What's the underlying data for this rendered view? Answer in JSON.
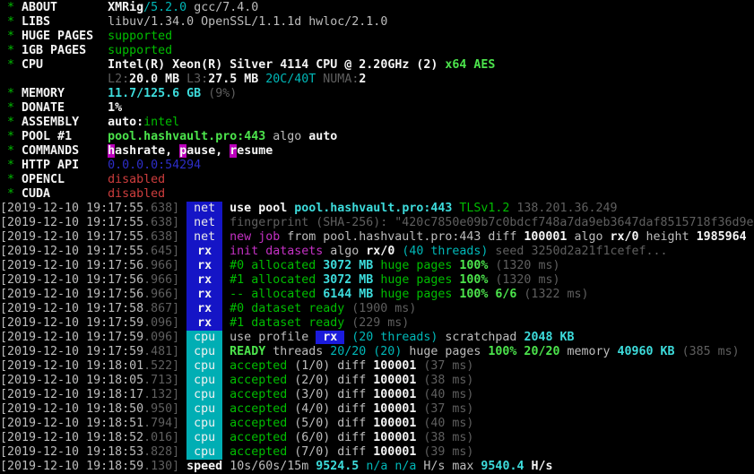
{
  "terminal": {
    "colors": {
      "background": "#000000",
      "default_text": "#bdbdbd",
      "white_bold": "#f5f5f5",
      "dim": "#5f5f5f",
      "green": "#00bd00",
      "green_bright": "#4ce44c",
      "cyan": "#00b8b8",
      "cyan_bright": "#3ddcdc",
      "magenta": "#c431c4",
      "red": "#cd3d3d",
      "blue": "#2d2dc8",
      "net_badge_bg": "#1515c6",
      "cpu_badge_bg": "#00aeb4",
      "hotkey_bg": "#bb00bb"
    },
    "lines": [
      [
        [
          "g",
          " * "
        ],
        [
          "lbl",
          "ABOUT       "
        ],
        [
          "w",
          "XMRig"
        ],
        [
          "c",
          "/5.2.0"
        ],
        [
          "d",
          " gcc/7.4.0"
        ]
      ],
      [
        [
          "g",
          " * "
        ],
        [
          "lbl",
          "LIBS        "
        ],
        [
          "d",
          "libuv/1.34.0 OpenSSL/1.1.1d hwloc/2.1.0"
        ]
      ],
      [
        [
          "g",
          " * "
        ],
        [
          "lbl",
          "HUGE PAGES  "
        ],
        [
          "g",
          "supported"
        ]
      ],
      [
        [
          "g",
          " * "
        ],
        [
          "lbl",
          "1GB PAGES   "
        ],
        [
          "g",
          "supported"
        ]
      ],
      [
        [
          "g",
          " * "
        ],
        [
          "lbl",
          "CPU         "
        ],
        [
          "w",
          "Intel(R) Xeon(R) Silver 4114 CPU @ 2.20GHz (2) "
        ],
        [
          "gb",
          "x64 AES"
        ]
      ],
      [
        [
          "d",
          "               "
        ],
        [
          "dk",
          "L2:"
        ],
        [
          "w",
          "20.0 MB "
        ],
        [
          "dk",
          "L3:"
        ],
        [
          "w",
          "27.5 MB "
        ],
        [
          "c",
          "20C/40T "
        ],
        [
          "dk",
          "NUMA:"
        ],
        [
          "w",
          "2"
        ]
      ],
      [
        [
          "g",
          " * "
        ],
        [
          "lbl",
          "MEMORY      "
        ],
        [
          "cb",
          "11.7/125.6 GB "
        ],
        [
          "dk",
          "(9%)"
        ]
      ],
      [
        [
          "g",
          " * "
        ],
        [
          "lbl",
          "DONATE      "
        ],
        [
          "w",
          "1%"
        ]
      ],
      [
        [
          "g",
          " * "
        ],
        [
          "lbl",
          "ASSEMBLY    "
        ],
        [
          "w",
          "auto:"
        ],
        [
          "g",
          "intel"
        ]
      ],
      [
        [
          "g",
          " * "
        ],
        [
          "lbl",
          "POOL #1     "
        ],
        [
          "gb",
          "pool.hashvault.pro:443"
        ],
        [
          "d",
          " algo "
        ],
        [
          "w",
          "auto"
        ]
      ],
      [
        [
          "g",
          " * "
        ],
        [
          "lbl",
          "COMMANDS    "
        ],
        [
          "hl",
          "h"
        ],
        [
          "w",
          "ashrate, "
        ],
        [
          "hl",
          "p"
        ],
        [
          "w",
          "ause, "
        ],
        [
          "hl",
          "r"
        ],
        [
          "w",
          "esume"
        ]
      ],
      [
        [
          "g",
          " * "
        ],
        [
          "lbl",
          "HTTP API    "
        ],
        [
          "b",
          "0.0.0.0:54294"
        ]
      ],
      [
        [
          "g",
          " * "
        ],
        [
          "lbl",
          "OPENCL      "
        ],
        [
          "r",
          "disabled"
        ]
      ],
      [
        [
          "g",
          " * "
        ],
        [
          "lbl",
          "CUDA        "
        ],
        [
          "r",
          "disabled"
        ]
      ],
      [
        [
          "ts",
          "[2019-12-10 19:17:55"
        ],
        [
          "tsd",
          ".638] "
        ],
        [
          "bn",
          "net"
        ],
        [
          "d",
          " "
        ],
        [
          "w",
          "use pool "
        ],
        [
          "cb",
          "pool.hashvault.pro:443 "
        ],
        [
          "g",
          "TLSv1.2"
        ],
        [
          "dk",
          " 138.201.36.249"
        ]
      ],
      [
        [
          "ts",
          "[2019-12-10 19:17:55"
        ],
        [
          "tsd",
          ".638] "
        ],
        [
          "bn",
          "net"
        ],
        [
          "d",
          " "
        ],
        [
          "dk",
          "fingerprint (SHA-256): \"420c7850e09b7c0bdcf748a7da9eb3647daf8515718f36d9e"
        ]
      ],
      [
        [
          "ts",
          "[2019-12-10 19:17:55"
        ],
        [
          "tsd",
          ".638] "
        ],
        [
          "bn",
          "net"
        ],
        [
          "d",
          " "
        ],
        [
          "m",
          "new job"
        ],
        [
          "d",
          " from pool.hashvault.pro:443 diff "
        ],
        [
          "w",
          "100001"
        ],
        [
          "d",
          " algo "
        ],
        [
          "w",
          "rx/0"
        ],
        [
          "d",
          " height "
        ],
        [
          "w",
          "1985964"
        ]
      ],
      [
        [
          "ts",
          "[2019-12-10 19:17:55"
        ],
        [
          "tsd",
          ".645] "
        ],
        [
          "brx",
          "rx"
        ],
        [
          "d",
          " "
        ],
        [
          "m",
          "init datasets"
        ],
        [
          "d",
          " algo "
        ],
        [
          "w",
          "rx/0"
        ],
        [
          "c",
          " (40 threads)"
        ],
        [
          "dk",
          " seed 3250d2a21f1cefef..."
        ]
      ],
      [
        [
          "ts",
          "[2019-12-10 19:17:56"
        ],
        [
          "tsd",
          ".966] "
        ],
        [
          "brx",
          "rx"
        ],
        [
          "d",
          " "
        ],
        [
          "g",
          "#0 allocated"
        ],
        [
          "cb",
          " 3072 MB "
        ],
        [
          "g",
          "huge pages "
        ],
        [
          "gb",
          "100%"
        ],
        [
          "dk",
          " (1320 ms)"
        ]
      ],
      [
        [
          "ts",
          "[2019-12-10 19:17:56"
        ],
        [
          "tsd",
          ".966] "
        ],
        [
          "brx",
          "rx"
        ],
        [
          "d",
          " "
        ],
        [
          "g",
          "#1 allocated"
        ],
        [
          "cb",
          " 3072 MB "
        ],
        [
          "g",
          "huge pages "
        ],
        [
          "gb",
          "100%"
        ],
        [
          "dk",
          " (1320 ms)"
        ]
      ],
      [
        [
          "ts",
          "[2019-12-10 19:17:56"
        ],
        [
          "tsd",
          ".966] "
        ],
        [
          "brx",
          "rx"
        ],
        [
          "d",
          " "
        ],
        [
          "g",
          "-- allocated"
        ],
        [
          "cb",
          " 6144 MB "
        ],
        [
          "g",
          "huge pages "
        ],
        [
          "gb",
          "100% 6/6"
        ],
        [
          "dk",
          " (1322 ms)"
        ]
      ],
      [
        [
          "ts",
          "[2019-12-10 19:17:58"
        ],
        [
          "tsd",
          ".867] "
        ],
        [
          "brx",
          "rx"
        ],
        [
          "d",
          " "
        ],
        [
          "g",
          "#0 dataset ready"
        ],
        [
          "dk",
          " (1900 ms)"
        ]
      ],
      [
        [
          "ts",
          "[2019-12-10 19:17:59"
        ],
        [
          "tsd",
          ".096] "
        ],
        [
          "brx",
          "rx"
        ],
        [
          "d",
          " "
        ],
        [
          "g",
          "#1 dataset ready"
        ],
        [
          "dk",
          " (229 ms)"
        ]
      ],
      [
        [
          "ts",
          "[2019-12-10 19:17:59"
        ],
        [
          "tsd",
          ".096] "
        ],
        [
          "bc",
          "cpu"
        ],
        [
          "d",
          " "
        ],
        [
          "d",
          "use profile "
        ],
        [
          "bri",
          " rx "
        ],
        [
          "c",
          " (20 threads)"
        ],
        [
          "d",
          " scratchpad "
        ],
        [
          "cb",
          "2048 KB"
        ]
      ],
      [
        [
          "ts",
          "[2019-12-10 19:17:59"
        ],
        [
          "tsd",
          ".481] "
        ],
        [
          "bc",
          "cpu"
        ],
        [
          "d",
          " "
        ],
        [
          "gb",
          "READY"
        ],
        [
          "d",
          " threads "
        ],
        [
          "c",
          "20/20 (20)"
        ],
        [
          "d",
          " huge pages "
        ],
        [
          "gb",
          "100% 20/20"
        ],
        [
          "d",
          " memory "
        ],
        [
          "cb",
          "40960 KB"
        ],
        [
          "dk",
          " (385 ms)"
        ]
      ],
      [
        [
          "ts",
          "[2019-12-10 19:18:01"
        ],
        [
          "tsd",
          ".522] "
        ],
        [
          "bc",
          "cpu"
        ],
        [
          "d",
          " "
        ],
        [
          "g",
          "accepted"
        ],
        [
          "d",
          " (1/0) diff "
        ],
        [
          "w",
          "100001"
        ],
        [
          "dk",
          " (37 ms)"
        ]
      ],
      [
        [
          "ts",
          "[2019-12-10 19:18:05"
        ],
        [
          "tsd",
          ".713] "
        ],
        [
          "bc",
          "cpu"
        ],
        [
          "d",
          " "
        ],
        [
          "g",
          "accepted"
        ],
        [
          "d",
          " (2/0) diff "
        ],
        [
          "w",
          "100001"
        ],
        [
          "dk",
          " (38 ms)"
        ]
      ],
      [
        [
          "ts",
          "[2019-12-10 19:18:17"
        ],
        [
          "tsd",
          ".132] "
        ],
        [
          "bc",
          "cpu"
        ],
        [
          "d",
          " "
        ],
        [
          "g",
          "accepted"
        ],
        [
          "d",
          " (3/0) diff "
        ],
        [
          "w",
          "100001"
        ],
        [
          "dk",
          " (40 ms)"
        ]
      ],
      [
        [
          "ts",
          "[2019-12-10 19:18:50"
        ],
        [
          "tsd",
          ".950] "
        ],
        [
          "bc",
          "cpu"
        ],
        [
          "d",
          " "
        ],
        [
          "g",
          "accepted"
        ],
        [
          "d",
          " (4/0) diff "
        ],
        [
          "w",
          "100001"
        ],
        [
          "dk",
          " (37 ms)"
        ]
      ],
      [
        [
          "ts",
          "[2019-12-10 19:18:51"
        ],
        [
          "tsd",
          ".794] "
        ],
        [
          "bc",
          "cpu"
        ],
        [
          "d",
          " "
        ],
        [
          "g",
          "accepted"
        ],
        [
          "d",
          " (5/0) diff "
        ],
        [
          "w",
          "100001"
        ],
        [
          "dk",
          " (40 ms)"
        ]
      ],
      [
        [
          "ts",
          "[2019-12-10 19:18:52"
        ],
        [
          "tsd",
          ".016] "
        ],
        [
          "bc",
          "cpu"
        ],
        [
          "d",
          " "
        ],
        [
          "g",
          "accepted"
        ],
        [
          "d",
          " (6/0) diff "
        ],
        [
          "w",
          "100001"
        ],
        [
          "dk",
          " (38 ms)"
        ]
      ],
      [
        [
          "ts",
          "[2019-12-10 19:18:53"
        ],
        [
          "tsd",
          ".828] "
        ],
        [
          "bc",
          "cpu"
        ],
        [
          "d",
          " "
        ],
        [
          "g",
          "accepted"
        ],
        [
          "d",
          " (7/0) diff "
        ],
        [
          "w",
          "100001"
        ],
        [
          "dk",
          " (39 ms)"
        ]
      ],
      [
        [
          "ts",
          "[2019-12-10 19:18:59"
        ],
        [
          "tsd",
          ".130] "
        ],
        [
          "w",
          "speed "
        ],
        [
          "d",
          "10s/60s/15m "
        ],
        [
          "cb",
          "9524.5 "
        ],
        [
          "c",
          "n/a n/a "
        ],
        [
          "d",
          "H/s max "
        ],
        [
          "cb",
          "9540.4 "
        ],
        [
          "w",
          "H/s"
        ]
      ]
    ]
  }
}
